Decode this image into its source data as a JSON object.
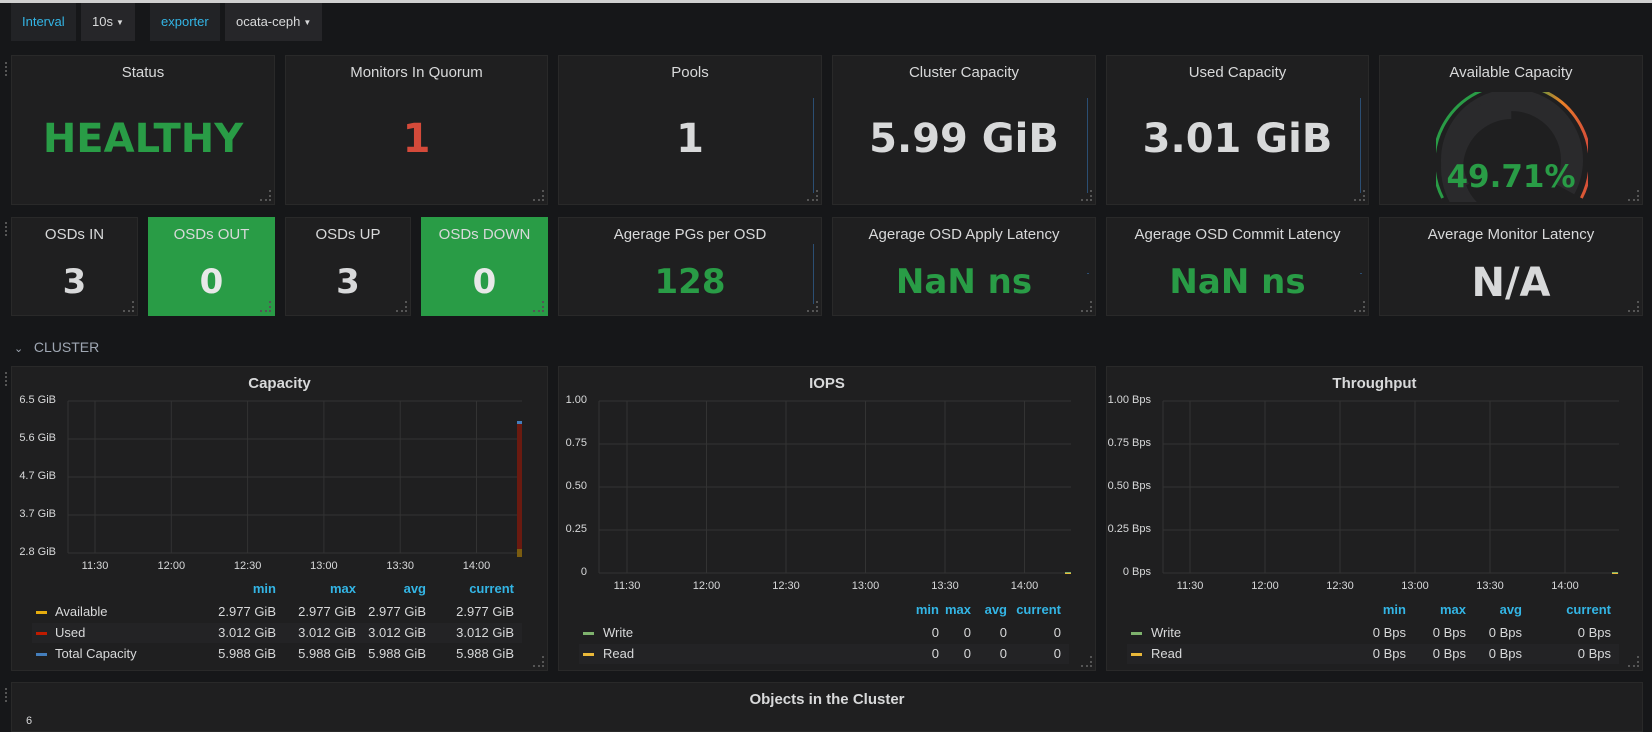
{
  "toolbar": {
    "interval_label": "Interval",
    "interval_value": "10s",
    "exporter_label": "exporter",
    "exporter_value": "ocata-ceph"
  },
  "stats_row1": [
    {
      "title": "Status",
      "value": "HEALTHY",
      "color": "#299c46"
    },
    {
      "title": "Monitors In Quorum",
      "value": "1",
      "color": "#d44a3a"
    },
    {
      "title": "Pools",
      "value": "1",
      "color": "#d8d9da"
    },
    {
      "title": "Cluster Capacity",
      "value": "5.99 GiB",
      "color": "#d8d9da"
    },
    {
      "title": "Used Capacity",
      "value": "3.01 GiB",
      "color": "#d8d9da"
    },
    {
      "title": "Available Capacity",
      "value": "49.71%",
      "color": "#299c46"
    }
  ],
  "gauge": {
    "percent": 49.71
  },
  "stats_row2": [
    {
      "title": "OSDs IN",
      "value": "3"
    },
    {
      "title": "OSDs OUT",
      "value": "0"
    },
    {
      "title": "OSDs UP",
      "value": "3"
    },
    {
      "title": "OSDs DOWN",
      "value": "0"
    },
    {
      "title": "Agerage PGs per OSD",
      "value": "128"
    },
    {
      "title": "Agerage OSD Apply Latency",
      "value": "NaN ns"
    },
    {
      "title": "Agerage OSD Commit Latency",
      "value": "NaN ns"
    },
    {
      "title": "Average Monitor Latency",
      "value": "N/A"
    }
  ],
  "row_header": {
    "title": "CLUSTER"
  },
  "capacity": {
    "title": "Capacity",
    "y_ticks": [
      "6.5 GiB",
      "5.6 GiB",
      "4.7 GiB",
      "3.7 GiB",
      "2.8 GiB"
    ],
    "x_ticks": [
      "11:30",
      "12:00",
      "12:30",
      "13:00",
      "13:30",
      "14:00"
    ],
    "legend_headers": [
      "min",
      "max",
      "avg",
      "current"
    ],
    "legend": [
      {
        "name": "Available",
        "color": "#e5ac0e",
        "values": [
          "2.977 GiB",
          "2.977 GiB",
          "2.977 GiB",
          "2.977 GiB"
        ]
      },
      {
        "name": "Used",
        "color": "#bf1b00",
        "values": [
          "3.012 GiB",
          "3.012 GiB",
          "3.012 GiB",
          "3.012 GiB"
        ]
      },
      {
        "name": "Total Capacity",
        "color": "#447ebc",
        "values": [
          "5.988 GiB",
          "5.988 GiB",
          "5.988 GiB",
          "5.988 GiB"
        ]
      }
    ]
  },
  "iops": {
    "title": "IOPS",
    "y_ticks": [
      "1.00",
      "0.75",
      "0.50",
      "0.25",
      "0"
    ],
    "x_ticks": [
      "11:30",
      "12:00",
      "12:30",
      "13:00",
      "13:30",
      "14:00"
    ],
    "legend_headers": [
      "min",
      "max",
      "avg",
      "current"
    ],
    "legend": [
      {
        "name": "Write",
        "color": "#7eb26d",
        "values": [
          "0",
          "0",
          "0",
          "0"
        ]
      },
      {
        "name": "Read",
        "color": "#eab839",
        "values": [
          "0",
          "0",
          "0",
          "0"
        ]
      }
    ]
  },
  "throughput": {
    "title": "Throughput",
    "y_ticks": [
      "1.00 Bps",
      "0.75 Bps",
      "0.50 Bps",
      "0.25 Bps",
      "0 Bps"
    ],
    "x_ticks": [
      "11:30",
      "12:00",
      "12:30",
      "13:00",
      "13:30",
      "14:00"
    ],
    "legend_headers": [
      "min",
      "max",
      "avg",
      "current"
    ],
    "legend": [
      {
        "name": "Write",
        "color": "#7eb26d",
        "values": [
          "0 Bps",
          "0 Bps",
          "0 Bps",
          "0 Bps"
        ]
      },
      {
        "name": "Read",
        "color": "#eab839",
        "values": [
          "0 Bps",
          "0 Bps",
          "0 Bps",
          "0 Bps"
        ]
      }
    ]
  },
  "objects": {
    "title": "Objects in the Cluster",
    "first_tick": "6"
  }
}
